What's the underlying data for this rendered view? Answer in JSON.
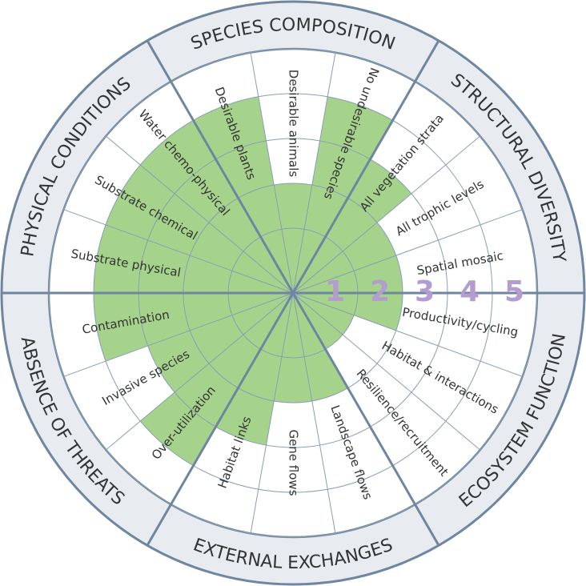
{
  "chart_data": {
    "type": "recovery-wheel",
    "groups": [
      {
        "name": "STRUCTURAL DIVERSITY",
        "attributes": [
          "Spatial mosaic",
          "All trophic levels",
          "All vegetation strata"
        ],
        "values": [
          2,
          2,
          3
        ]
      },
      {
        "name": "SPECIES COMPOSITION",
        "attributes": [
          "No undesirable species",
          "Desirable animals",
          "Desirable plants"
        ],
        "values": [
          4,
          2,
          4
        ]
      },
      {
        "name": "PHYSICAL CONDITIONS",
        "attributes": [
          "Water chemo-physical",
          "Substrate chemical",
          "Substrate physical"
        ],
        "values": [
          4,
          4,
          4
        ]
      },
      {
        "name": "ABSENCE OF THREATS",
        "attributes": [
          "Contamination",
          "Invasive species",
          "Over-utilization"
        ],
        "values": [
          4,
          3,
          4
        ]
      },
      {
        "name": "EXTERNAL EXCHANGES",
        "attributes": [
          "Habitat links",
          "Gene flows",
          "Landscape flows"
        ],
        "values": [
          3,
          2,
          2
        ]
      },
      {
        "name": "ECOSYSTEM FUNCTION",
        "attributes": [
          "Resilience/recruitment",
          "Habitat & interactions",
          "Productivity/cycling"
        ],
        "values": [
          1,
          1,
          2
        ]
      }
    ],
    "rlim": [
      0,
      5
    ],
    "rticks": [
      1,
      2,
      3,
      4,
      5
    ],
    "color": "#a5d38c"
  }
}
